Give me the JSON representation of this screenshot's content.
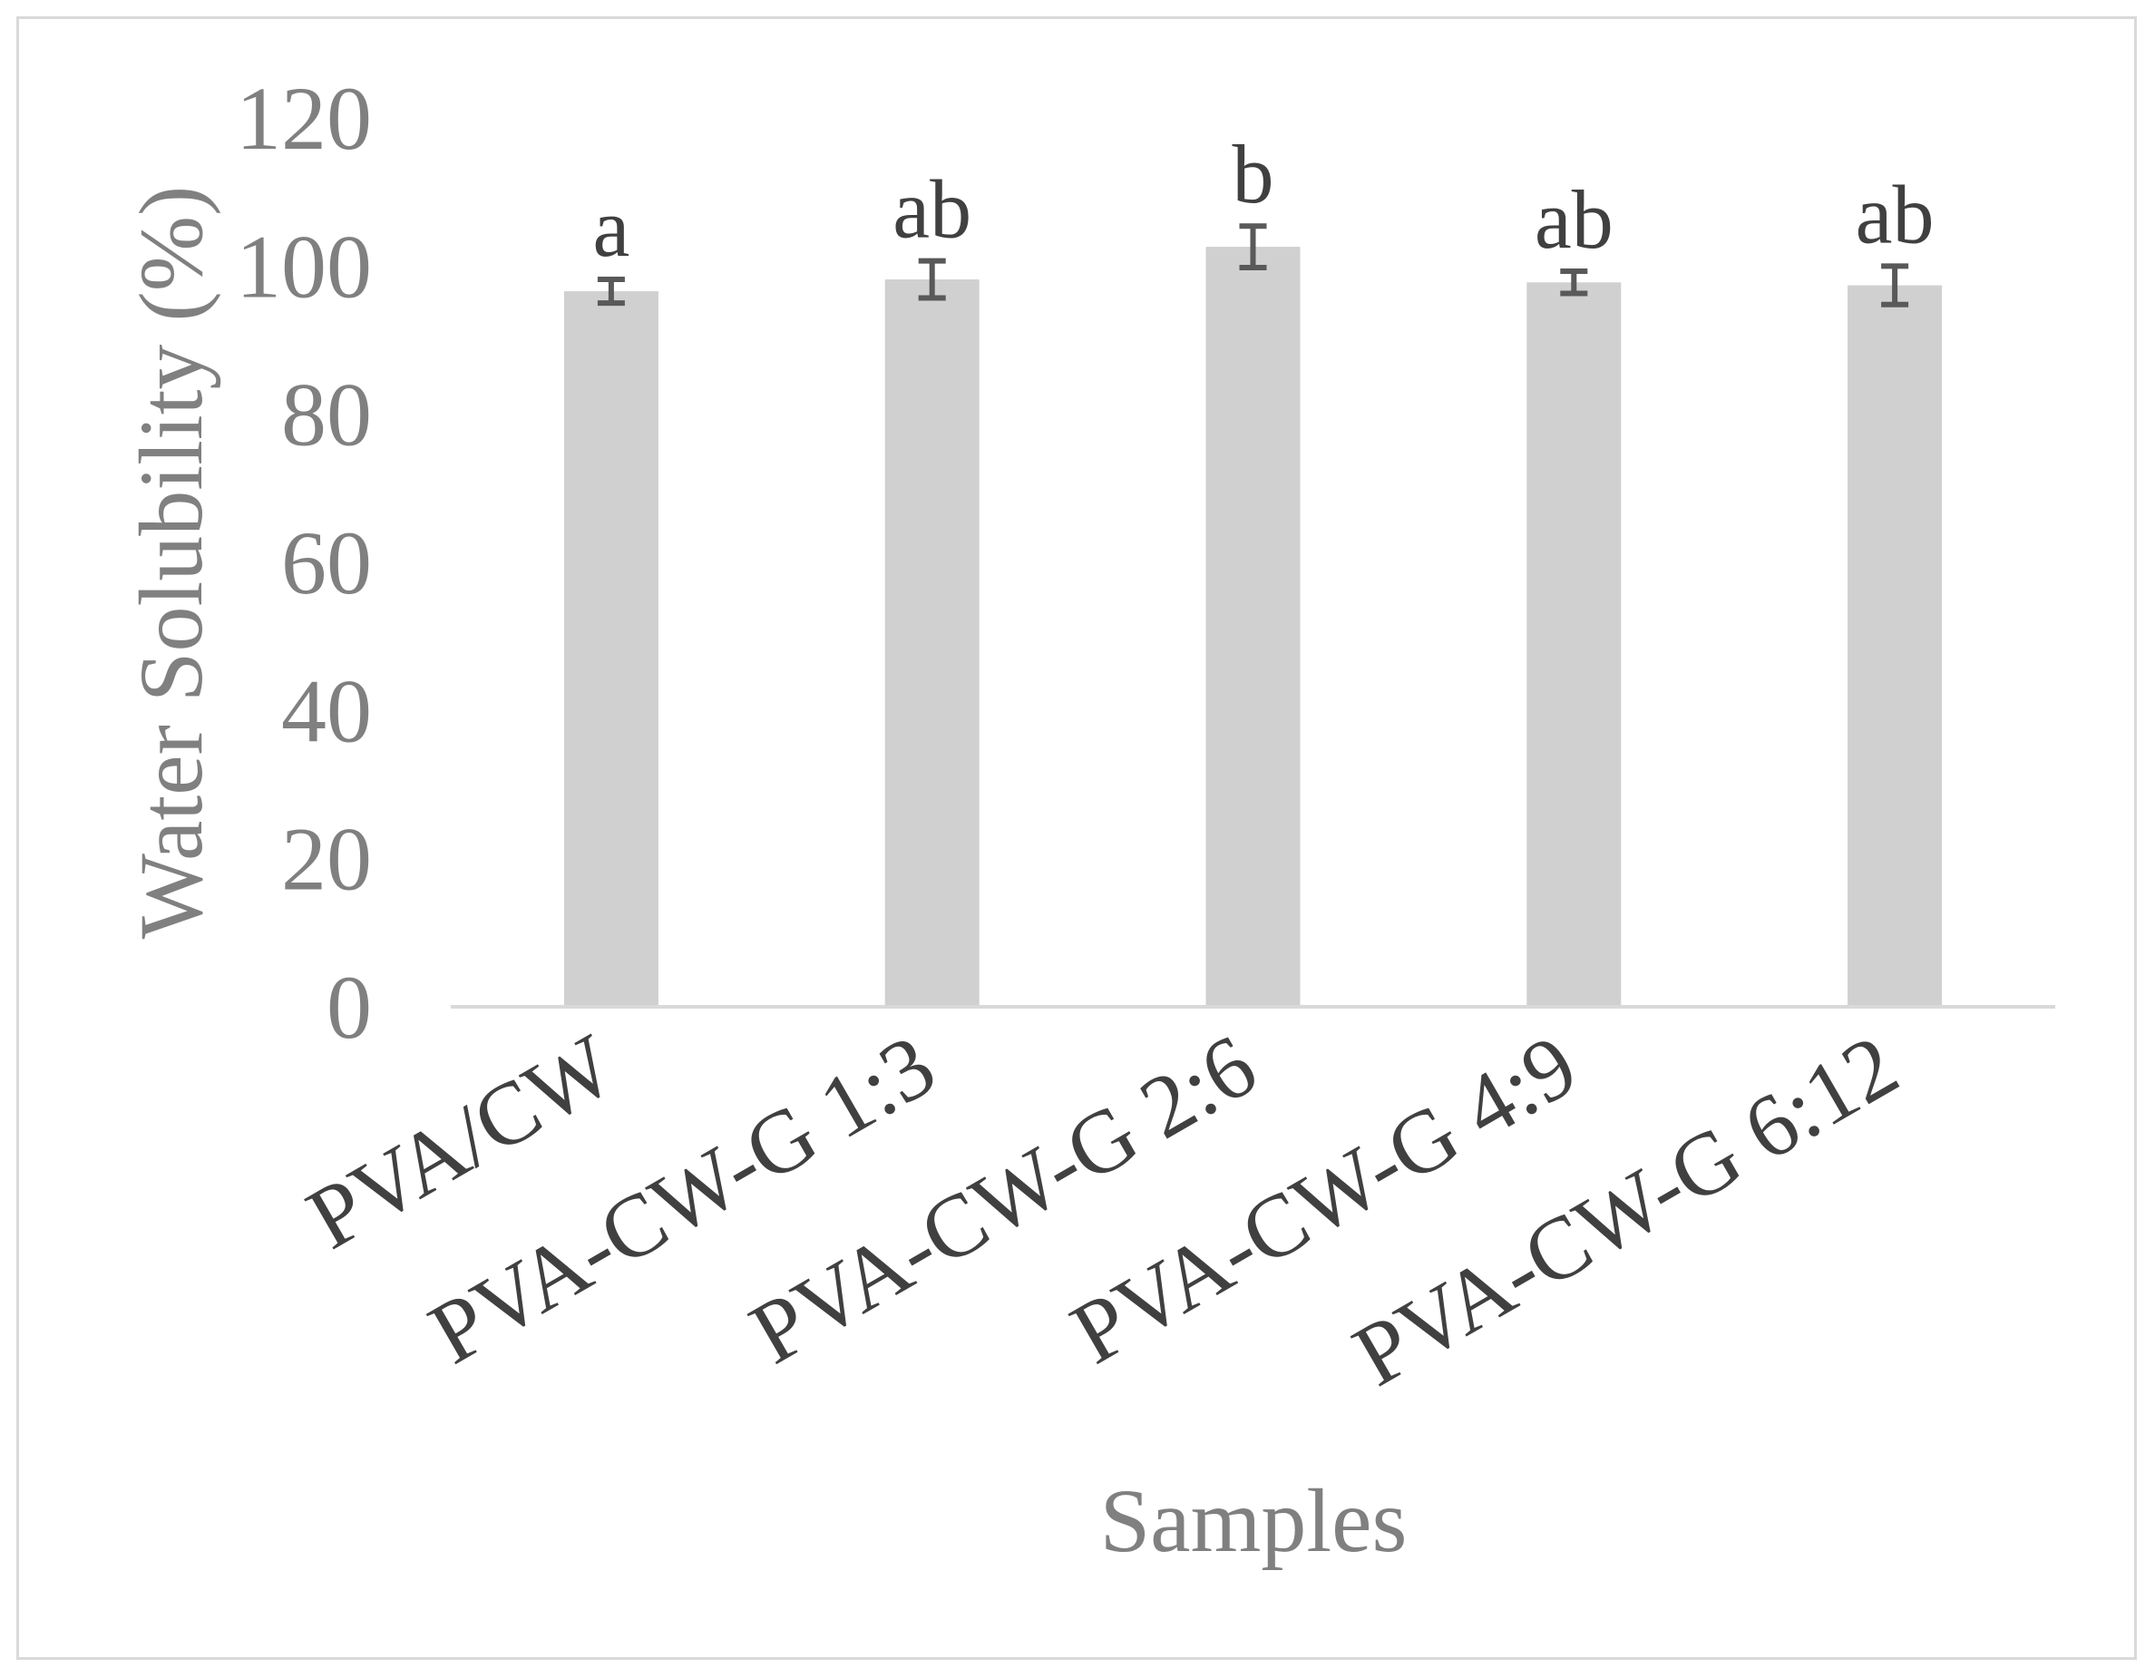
{
  "chart_data": {
    "type": "bar",
    "title": "",
    "xlabel": "Samples",
    "ylabel": "Water Solubility (%)",
    "ylim": [
      0,
      120
    ],
    "yticks": [
      0,
      20,
      40,
      60,
      80,
      100,
      120
    ],
    "gridlines": false,
    "legend": "none",
    "bar_color": "#d0d0d0",
    "error_bar_color": "#595959",
    "categories": [
      "PVA/CW",
      "PVA-CW-G 1:3",
      "PVA-CW-G 2:6",
      "PVA-CW-G 4:9",
      "PVA-CW-G 6:12"
    ],
    "values": [
      96.6,
      98.2,
      102.6,
      97.8,
      97.4
    ],
    "errors": [
      1.6,
      2.5,
      2.8,
      1.5,
      2.6
    ],
    "significance_labels": [
      "a",
      "ab",
      "b",
      "ab",
      "ab"
    ]
  }
}
